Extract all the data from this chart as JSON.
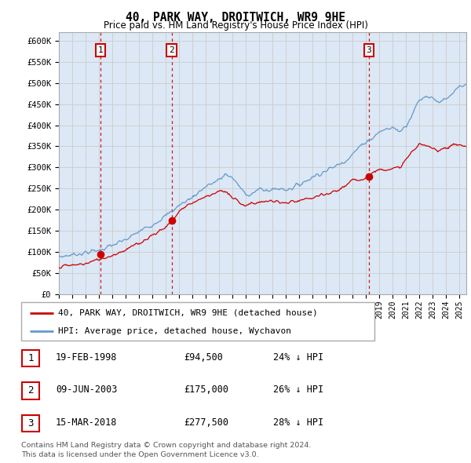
{
  "title": "40, PARK WAY, DROITWICH, WR9 9HE",
  "subtitle": "Price paid vs. HM Land Registry's House Price Index (HPI)",
  "xlim_start": 1995.0,
  "xlim_end": 2025.5,
  "ylim": [
    0,
    620000
  ],
  "yticks": [
    0,
    50000,
    100000,
    150000,
    200000,
    250000,
    300000,
    350000,
    400000,
    450000,
    500000,
    550000,
    600000
  ],
  "ytick_labels": [
    "£0",
    "£50K",
    "£100K",
    "£150K",
    "£200K",
    "£250K",
    "£300K",
    "£350K",
    "£400K",
    "£450K",
    "£500K",
    "£550K",
    "£600K"
  ],
  "sale_dates": [
    1998.13,
    2003.44,
    2018.21
  ],
  "sale_prices": [
    94500,
    175000,
    277500
  ],
  "sale_labels": [
    "1",
    "2",
    "3"
  ],
  "sale_info": [
    {
      "num": "1",
      "date": "19-FEB-1998",
      "price": "£94,500",
      "pct": "24% ↓ HPI"
    },
    {
      "num": "2",
      "date": "09-JUN-2003",
      "price": "£175,000",
      "pct": "26% ↓ HPI"
    },
    {
      "num": "3",
      "date": "15-MAR-2018",
      "price": "£277,500",
      "pct": "28% ↓ HPI"
    }
  ],
  "legend_line1": "40, PARK WAY, DROITWICH, WR9 9HE (detached house)",
  "legend_line2": "HPI: Average price, detached house, Wychavon",
  "footnote1": "Contains HM Land Registry data © Crown copyright and database right 2024.",
  "footnote2": "This data is licensed under the Open Government Licence v3.0.",
  "bg_color": "#dce8f5",
  "hpi_color": "#6699cc",
  "price_color": "#cc0000",
  "dashed_line_color": "#cc0000",
  "grid_color": "#cccccc",
  "hpi_waypoints_x": [
    1995.0,
    1996.0,
    1997.0,
    1998.0,
    1999.0,
    2000.0,
    2001.0,
    2002.0,
    2003.0,
    2004.0,
    2005.0,
    2006.0,
    2007.0,
    2007.5,
    2008.0,
    2008.5,
    2009.0,
    2009.5,
    2010.0,
    2010.5,
    2011.0,
    2011.5,
    2012.0,
    2012.5,
    2013.0,
    2013.5,
    2014.0,
    2014.5,
    2015.0,
    2015.5,
    2016.0,
    2016.5,
    2017.0,
    2017.5,
    2018.0,
    2018.5,
    2019.0,
    2019.5,
    2020.0,
    2020.5,
    2021.0,
    2021.5,
    2022.0,
    2022.5,
    2023.0,
    2023.5,
    2024.0,
    2024.5,
    2025.0,
    2025.5
  ],
  "hpi_waypoints_y": [
    88000,
    93000,
    98000,
    104000,
    115000,
    128000,
    148000,
    165000,
    185000,
    210000,
    230000,
    255000,
    270000,
    285000,
    275000,
    255000,
    235000,
    240000,
    248000,
    245000,
    248000,
    250000,
    248000,
    252000,
    260000,
    268000,
    278000,
    285000,
    292000,
    300000,
    308000,
    318000,
    332000,
    348000,
    362000,
    370000,
    385000,
    390000,
    395000,
    385000,
    400000,
    430000,
    460000,
    470000,
    465000,
    455000,
    460000,
    475000,
    490000,
    495000
  ],
  "price_waypoints_x": [
    1995.0,
    1996.0,
    1997.0,
    1998.0,
    1999.0,
    2000.0,
    2001.0,
    2002.0,
    2003.0,
    2003.5,
    2004.0,
    2004.5,
    2005.0,
    2005.5,
    2006.0,
    2006.5,
    2007.0,
    2007.5,
    2008.0,
    2008.5,
    2009.0,
    2009.5,
    2010.0,
    2011.0,
    2012.0,
    2013.0,
    2014.0,
    2015.0,
    2016.0,
    2017.0,
    2017.5,
    2018.0,
    2018.5,
    2019.0,
    2019.5,
    2020.0,
    2020.5,
    2021.0,
    2021.5,
    2022.0,
    2022.5,
    2023.0,
    2023.5,
    2024.0,
    2024.5,
    2025.0,
    2025.5
  ],
  "price_waypoints_y": [
    65000,
    68000,
    72000,
    82000,
    92000,
    105000,
    120000,
    140000,
    158000,
    175000,
    195000,
    210000,
    215000,
    225000,
    230000,
    238000,
    245000,
    240000,
    228000,
    218000,
    210000,
    215000,
    218000,
    220000,
    215000,
    220000,
    228000,
    235000,
    248000,
    268000,
    272000,
    277000,
    288000,
    295000,
    298000,
    295000,
    300000,
    318000,
    340000,
    355000,
    350000,
    345000,
    342000,
    348000,
    352000,
    355000,
    348000
  ]
}
